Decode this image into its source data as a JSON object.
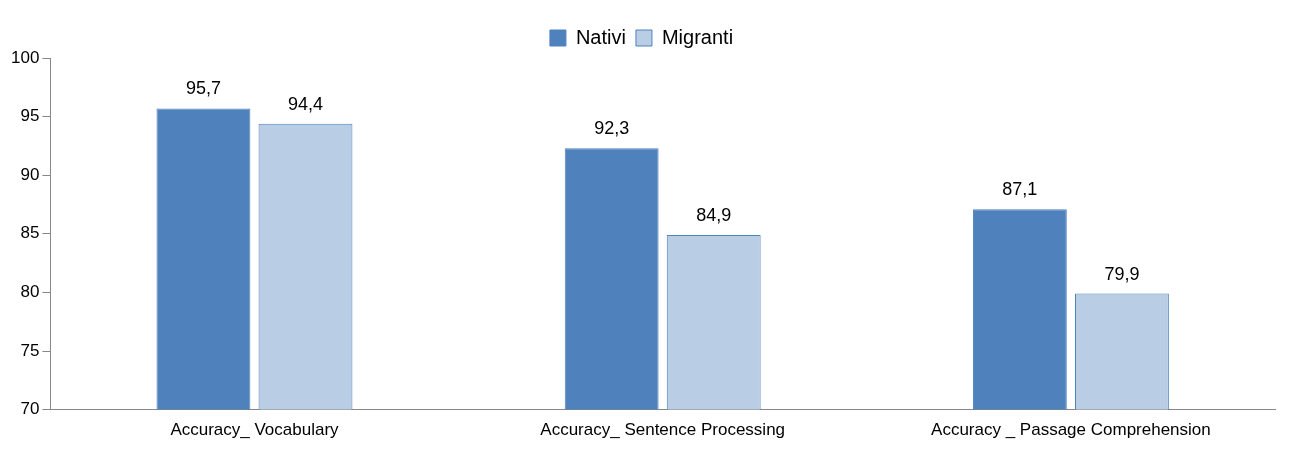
{
  "chart_data": {
    "type": "bar",
    "categories": [
      "Accuracy_ Vocabulary",
      "Accuracy_ Sentence Processing",
      "Accuracy _ Passage Comprehension"
    ],
    "series": [
      {
        "name": "Nativi",
        "color": "#4f81bd",
        "values": [
          95.7,
          92.3,
          87.1
        ],
        "value_labels": [
          "95,7",
          "92,3",
          "87,1"
        ]
      },
      {
        "name": "Migranti",
        "color": "#b9cde5",
        "values": [
          94.4,
          84.9,
          79.9
        ],
        "value_labels": [
          "94,4",
          "84,9",
          "79,9"
        ]
      }
    ],
    "ylim": [
      70,
      100
    ],
    "yticks": [
      70,
      75,
      80,
      85,
      90,
      95,
      100
    ],
    "grid": false,
    "legend": "top"
  }
}
